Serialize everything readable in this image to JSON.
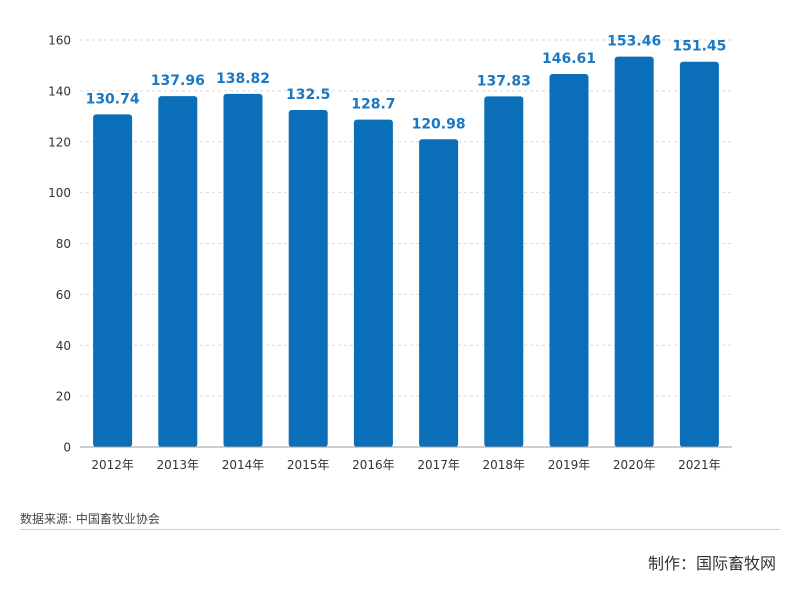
{
  "chart_data": {
    "type": "bar",
    "categories": [
      "2012年",
      "2013年",
      "2014年",
      "2015年",
      "2016年",
      "2017年",
      "2018年",
      "2019年",
      "2020年",
      "2021年"
    ],
    "values": [
      130.74,
      137.96,
      138.82,
      132.5,
      128.7,
      120.98,
      137.83,
      146.61,
      153.46,
      151.45
    ],
    "value_labels": [
      "130.74",
      "137.96",
      "138.82",
      "132.5",
      "128.7",
      "120.98",
      "137.83",
      "146.61",
      "153.46",
      "151.45"
    ],
    "y_ticks": [
      "0",
      "20",
      "40",
      "60",
      "80",
      "100",
      "120",
      "140",
      "160"
    ],
    "ylim": [
      0,
      160
    ],
    "grid": true,
    "legend": "none",
    "bar_color": "#0a6fb8",
    "label_color": "#1a78c2"
  },
  "footer": {
    "source": "数据来源: 中国畜牧业协会",
    "credit": "制作：国际畜牧网"
  }
}
